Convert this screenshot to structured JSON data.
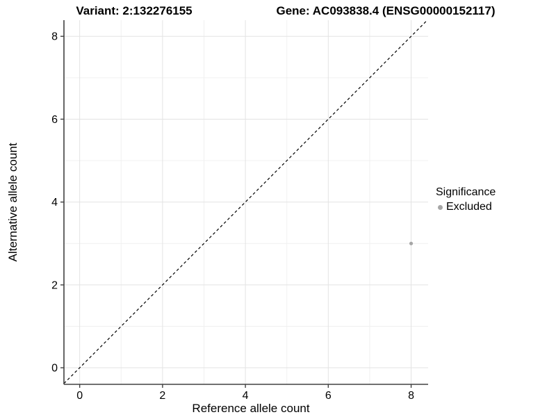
{
  "header": {
    "variant_title": "Variant: 2:132276155",
    "gene_title": "Gene: AC093838.4 (ENSG00000152117)"
  },
  "legend": {
    "title": "Significance",
    "items": [
      {
        "label": "Excluded",
        "color": "#a6a6a6"
      }
    ]
  },
  "colors": {
    "background": "#ffffff",
    "axis_line": "#404040",
    "tick_mark": "#404040",
    "tick_text": "#000000",
    "grid_major": "#e3e3e3",
    "grid_minor": "#f0f0f0",
    "identity_line": "#000000",
    "point": "#a6a6a6"
  },
  "chart_data": {
    "type": "scatter",
    "titles": {
      "left": "Variant: 2:132276155",
      "right": "Gene: AC093838.4 (ENSG00000152117)"
    },
    "xlabel": "Reference allele count",
    "ylabel": "Alternative allele count",
    "xlim": [
      -0.38,
      8.41
    ],
    "ylim": [
      -0.4,
      8.39
    ],
    "x_ticks": [
      0,
      2,
      4,
      6,
      8
    ],
    "y_ticks": [
      0,
      2,
      4,
      6,
      8
    ],
    "x_minor_ticks": [
      1,
      3,
      5,
      7
    ],
    "y_minor_ticks": [
      1,
      3,
      5,
      7
    ],
    "grid": true,
    "legend": {
      "title": "Significance",
      "position": "right"
    },
    "identity_line": {
      "equation": "y = x",
      "style": "dashed",
      "color": "#000000"
    },
    "series": [
      {
        "name": "Excluded",
        "color": "#a6a6a6",
        "points": [
          {
            "x": 8,
            "y": 3
          }
        ],
        "point_radius": 2.6
      }
    ]
  }
}
